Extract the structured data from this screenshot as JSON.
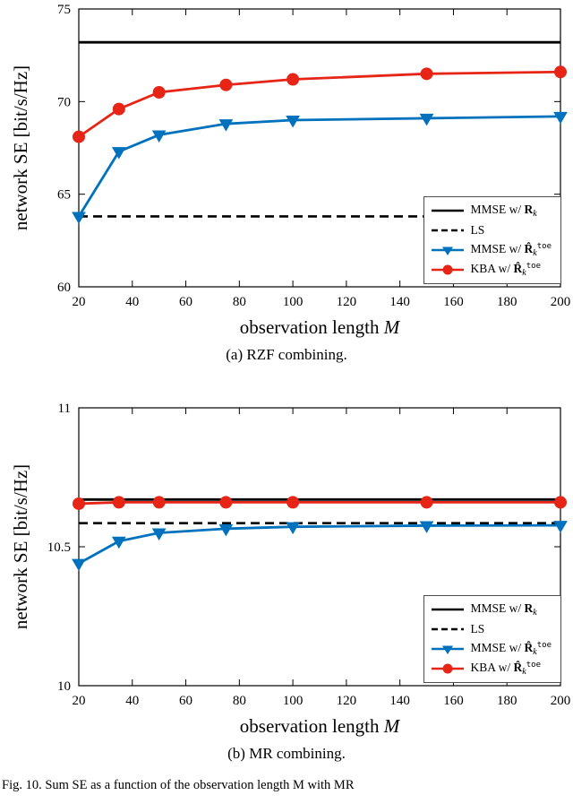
{
  "figure": {
    "caption": "Fig. 10.   Sum SE as a function of the observation length M with MR"
  },
  "chart_data": [
    {
      "type": "line",
      "title": "(a) RZF combining.",
      "ylabel": "network SE [bit/s/Hz]",
      "xlabel_parts": [
        {
          "t": "observation length ",
          "s": "plain"
        },
        {
          "t": "M",
          "s": "italic"
        }
      ],
      "xlim": [
        20,
        200
      ],
      "ylim": [
        60,
        75
      ],
      "xticks": [
        20,
        40,
        60,
        80,
        100,
        120,
        140,
        160,
        180,
        200
      ],
      "yticks": [
        60,
        65,
        70,
        75
      ],
      "x": [
        20,
        35,
        50,
        75,
        100,
        150,
        200
      ],
      "grid": false,
      "legend_position": "lower right",
      "series": [
        {
          "name": "MMSE w/ R_k",
          "color": "#000000",
          "line": "solid",
          "marker": "none",
          "values": [
            73.2,
            73.2,
            73.2,
            73.2,
            73.2,
            73.2,
            73.2
          ],
          "label_parts": [
            {
              "t": "MMSE w/ ",
              "s": "plain"
            },
            {
              "t": "R",
              "s": "boldsym"
            },
            {
              "t": "k",
              "s": "sub"
            }
          ]
        },
        {
          "name": "LS",
          "color": "#000000",
          "line": "dashed",
          "marker": "none",
          "values": [
            63.8,
            63.8,
            63.8,
            63.8,
            63.8,
            63.8,
            63.8
          ],
          "label_parts": [
            {
              "t": "LS",
              "s": "plain"
            }
          ]
        },
        {
          "name": "MMSE w/ R̂_k^toe",
          "color": "#0072bd",
          "line": "solid",
          "marker": "triangle-down",
          "values": [
            63.8,
            67.3,
            68.2,
            68.8,
            69.0,
            69.1,
            69.2
          ],
          "label_parts": [
            {
              "t": "MMSE w/ ",
              "s": "plain"
            },
            {
              "t": "R̂",
              "s": "boldsym"
            },
            {
              "t": "k",
              "s": "sub"
            },
            {
              "t": "toe",
              "s": "sup"
            }
          ]
        },
        {
          "name": "KBA w/ R̂_k^toe",
          "color": "#e62517",
          "line": "solid",
          "marker": "circle",
          "values": [
            68.1,
            69.6,
            70.5,
            70.9,
            71.2,
            71.5,
            71.6
          ],
          "label_parts": [
            {
              "t": "KBA w/ ",
              "s": "plain"
            },
            {
              "t": "R̂",
              "s": "boldsym"
            },
            {
              "t": "k",
              "s": "sub"
            },
            {
              "t": "toe",
              "s": "sup"
            }
          ]
        }
      ]
    },
    {
      "type": "line",
      "title": "(b) MR combining.",
      "ylabel": "network SE [bit/s/Hz]",
      "xlabel_parts": [
        {
          "t": "observation length ",
          "s": "plain"
        },
        {
          "t": "M",
          "s": "italic"
        }
      ],
      "xlim": [
        20,
        200
      ],
      "ylim": [
        10,
        11
      ],
      "xticks": [
        20,
        40,
        60,
        80,
        100,
        120,
        140,
        160,
        180,
        200
      ],
      "yticks": [
        10,
        10.5,
        11
      ],
      "x": [
        20,
        35,
        50,
        75,
        100,
        150,
        200
      ],
      "grid": false,
      "legend_position": "lower right",
      "series": [
        {
          "name": "MMSE w/ R_k",
          "color": "#000000",
          "line": "solid",
          "marker": "none",
          "values": [
            10.67,
            10.67,
            10.67,
            10.67,
            10.67,
            10.67,
            10.67
          ],
          "label_parts": [
            {
              "t": "MMSE w/ ",
              "s": "plain"
            },
            {
              "t": "R",
              "s": "boldsym"
            },
            {
              "t": "k",
              "s": "sub"
            }
          ]
        },
        {
          "name": "LS",
          "color": "#000000",
          "line": "dashed",
          "marker": "none",
          "values": [
            10.585,
            10.585,
            10.585,
            10.585,
            10.585,
            10.585,
            10.585
          ],
          "label_parts": [
            {
              "t": "LS",
              "s": "plain"
            }
          ]
        },
        {
          "name": "MMSE w/ R̂_k^toe",
          "color": "#0072bd",
          "line": "solid",
          "marker": "triangle-down",
          "values": [
            10.44,
            10.52,
            10.55,
            10.565,
            10.572,
            10.576,
            10.577
          ],
          "label_parts": [
            {
              "t": "MMSE w/ ",
              "s": "plain"
            },
            {
              "t": "R̂",
              "s": "boldsym"
            },
            {
              "t": "k",
              "s": "sub"
            },
            {
              "t": "toe",
              "s": "sup"
            }
          ]
        },
        {
          "name": "KBA w/ R̂_k^toe",
          "color": "#e62517",
          "line": "solid",
          "marker": "circle",
          "values": [
            10.655,
            10.66,
            10.66,
            10.66,
            10.66,
            10.66,
            10.66
          ],
          "label_parts": [
            {
              "t": "KBA w/ ",
              "s": "plain"
            },
            {
              "t": "R̂",
              "s": "boldsym"
            },
            {
              "t": "k",
              "s": "sub"
            },
            {
              "t": "toe",
              "s": "sup"
            }
          ]
        }
      ]
    }
  ]
}
